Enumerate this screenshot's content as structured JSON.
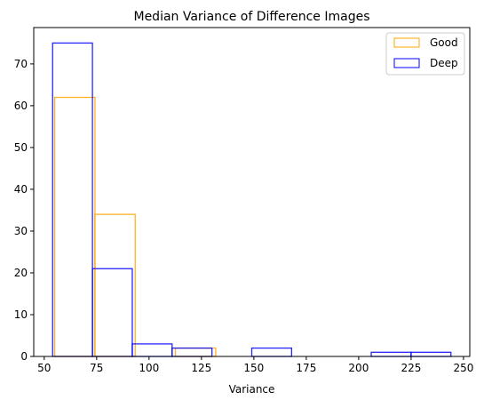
{
  "chart_data": {
    "type": "bar",
    "subtype": "histogram",
    "title": "Median Variance of Difference Images",
    "xlabel": "Variance",
    "ylabel": "",
    "xlim": [
      45,
      253
    ],
    "ylim": [
      0,
      78.7
    ],
    "xticks": [
      50,
      75,
      100,
      125,
      150,
      175,
      200,
      225,
      250
    ],
    "yticks": [
      0,
      10,
      20,
      30,
      40,
      50,
      60,
      70
    ],
    "grid": false,
    "legend": "top-right",
    "series": [
      {
        "name": "Good",
        "color": "#FFA500",
        "bins": [
          {
            "x0": 55.0,
            "x1": 74.2,
            "count": 62
          },
          {
            "x0": 74.2,
            "x1": 93.4,
            "count": 34
          },
          {
            "x0": 93.4,
            "x1": 112.6,
            "count": 0
          },
          {
            "x0": 112.6,
            "x1": 131.8,
            "count": 2
          },
          {
            "x0": 131.8,
            "x1": 151.0,
            "count": 0
          }
        ]
      },
      {
        "name": "Deep",
        "color": "#0000FF",
        "bins": [
          {
            "x0": 54.0,
            "x1": 73.0,
            "count": 75
          },
          {
            "x0": 73.0,
            "x1": 92.0,
            "count": 21
          },
          {
            "x0": 92.0,
            "x1": 111.0,
            "count": 3
          },
          {
            "x0": 111.0,
            "x1": 130.0,
            "count": 2
          },
          {
            "x0": 130.0,
            "x1": 149.0,
            "count": 0
          },
          {
            "x0": 149.0,
            "x1": 168.0,
            "count": 2
          },
          {
            "x0": 168.0,
            "x1": 187.0,
            "count": 0
          },
          {
            "x0": 187.0,
            "x1": 206.0,
            "count": 0
          },
          {
            "x0": 206.0,
            "x1": 225.0,
            "count": 1
          },
          {
            "x0": 225.0,
            "x1": 244.0,
            "count": 1
          }
        ]
      }
    ]
  }
}
